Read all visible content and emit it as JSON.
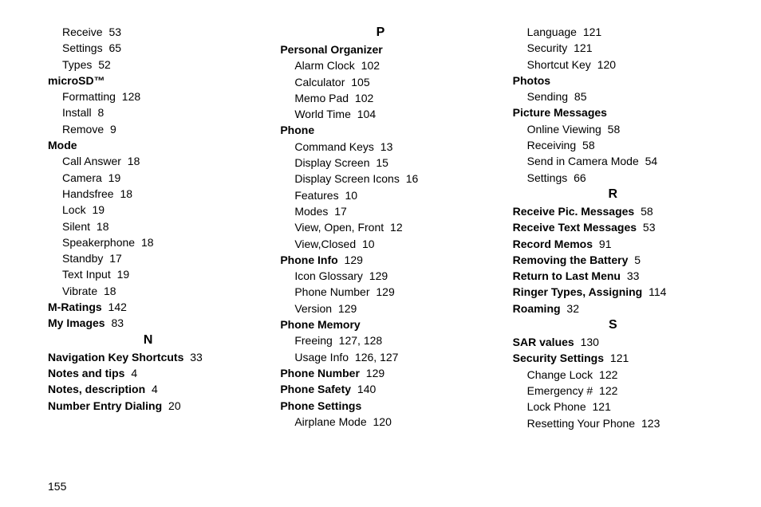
{
  "page_number": "155",
  "columns": [
    {
      "items": [
        {
          "type": "sub",
          "term": "Receive",
          "page": "53"
        },
        {
          "type": "sub",
          "term": "Settings",
          "page": "65"
        },
        {
          "type": "sub",
          "term": "Types",
          "page": "52"
        },
        {
          "type": "top",
          "term": "microSD™",
          "page": ""
        },
        {
          "type": "sub",
          "term": "Formatting",
          "page": "128"
        },
        {
          "type": "sub",
          "term": "Install",
          "page": "8"
        },
        {
          "type": "sub",
          "term": "Remove",
          "page": "9"
        },
        {
          "type": "top",
          "term": "Mode",
          "page": ""
        },
        {
          "type": "sub",
          "term": "Call Answer",
          "page": "18"
        },
        {
          "type": "sub",
          "term": "Camera",
          "page": "19"
        },
        {
          "type": "sub",
          "term": "Handsfree",
          "page": "18"
        },
        {
          "type": "sub",
          "term": "Lock",
          "page": "19"
        },
        {
          "type": "sub",
          "term": "Silent",
          "page": "18"
        },
        {
          "type": "sub",
          "term": "Speakerphone",
          "page": "18"
        },
        {
          "type": "sub",
          "term": "Standby",
          "page": "17"
        },
        {
          "type": "sub",
          "term": "Text Input",
          "page": "19"
        },
        {
          "type": "sub",
          "term": "Vibrate",
          "page": "18"
        },
        {
          "type": "top",
          "term": "M-Ratings",
          "page": "142"
        },
        {
          "type": "top",
          "term": "My Images",
          "page": "83"
        },
        {
          "type": "letter",
          "term": "N"
        },
        {
          "type": "top",
          "term": "Navigation Key Shortcuts",
          "page": "33"
        },
        {
          "type": "top",
          "term": "Notes and tips",
          "page": "4"
        },
        {
          "type": "top",
          "term": "Notes, description",
          "page": "4"
        },
        {
          "type": "top",
          "term": "Number Entry Dialing",
          "page": "20"
        }
      ]
    },
    {
      "items": [
        {
          "type": "letter",
          "term": "P"
        },
        {
          "type": "top",
          "term": "Personal Organizer",
          "page": ""
        },
        {
          "type": "sub",
          "term": "Alarm Clock",
          "page": "102"
        },
        {
          "type": "sub",
          "term": "Calculator",
          "page": "105"
        },
        {
          "type": "sub",
          "term": "Memo Pad",
          "page": "102"
        },
        {
          "type": "sub",
          "term": "World Time",
          "page": "104"
        },
        {
          "type": "top",
          "term": "Phone",
          "page": ""
        },
        {
          "type": "sub",
          "term": "Command Keys",
          "page": "13"
        },
        {
          "type": "sub",
          "term": "Display Screen",
          "page": "15"
        },
        {
          "type": "sub",
          "term": "Display Screen Icons",
          "page": "16"
        },
        {
          "type": "sub",
          "term": "Features",
          "page": "10"
        },
        {
          "type": "sub",
          "term": "Modes",
          "page": "17"
        },
        {
          "type": "sub",
          "term": "View, Open, Front",
          "page": "12"
        },
        {
          "type": "sub",
          "term": "View,Closed",
          "page": "10"
        },
        {
          "type": "top",
          "term": "Phone Info",
          "page": "129"
        },
        {
          "type": "sub",
          "term": "Icon Glossary",
          "page": "129"
        },
        {
          "type": "sub",
          "term": "Phone Number",
          "page": "129"
        },
        {
          "type": "sub",
          "term": "Version",
          "page": "129"
        },
        {
          "type": "top",
          "term": "Phone Memory",
          "page": ""
        },
        {
          "type": "sub",
          "term": "Freeing",
          "page": "127, 128"
        },
        {
          "type": "sub",
          "term": "Usage Info",
          "page": "126, 127"
        },
        {
          "type": "top",
          "term": "Phone Number",
          "page": "129"
        },
        {
          "type": "top",
          "term": "Phone Safety",
          "page": "140"
        },
        {
          "type": "top",
          "term": "Phone Settings",
          "page": ""
        },
        {
          "type": "sub",
          "term": "Airplane Mode",
          "page": "120"
        }
      ]
    },
    {
      "items": [
        {
          "type": "sub",
          "term": "Language",
          "page": "121"
        },
        {
          "type": "sub",
          "term": "Security",
          "page": "121"
        },
        {
          "type": "sub",
          "term": "Shortcut Key",
          "page": "120"
        },
        {
          "type": "top",
          "term": "Photos",
          "page": ""
        },
        {
          "type": "sub",
          "term": "Sending",
          "page": "85"
        },
        {
          "type": "top",
          "term": "Picture Messages",
          "page": ""
        },
        {
          "type": "sub",
          "term": "Online Viewing",
          "page": "58"
        },
        {
          "type": "sub",
          "term": "Receiving",
          "page": "58"
        },
        {
          "type": "sub",
          "term": "Send in Camera Mode",
          "page": "54"
        },
        {
          "type": "sub",
          "term": "Settings",
          "page": "66"
        },
        {
          "type": "letter",
          "term": "R"
        },
        {
          "type": "top",
          "term": "Receive Pic. Messages",
          "page": "58"
        },
        {
          "type": "top",
          "term": "Receive Text Messages",
          "page": "53"
        },
        {
          "type": "top",
          "term": "Record Memos",
          "page": "91"
        },
        {
          "type": "top",
          "term": "Removing the Battery",
          "page": "5"
        },
        {
          "type": "top",
          "term": "Return to Last Menu",
          "page": "33"
        },
        {
          "type": "top",
          "term": "Ringer Types, Assigning",
          "page": "114"
        },
        {
          "type": "top",
          "term": "Roaming",
          "page": "32"
        },
        {
          "type": "letter",
          "term": "S"
        },
        {
          "type": "top",
          "term": "SAR values",
          "page": "130"
        },
        {
          "type": "top",
          "term": "Security Settings",
          "page": "121"
        },
        {
          "type": "sub",
          "term": "Change Lock",
          "page": "122"
        },
        {
          "type": "sub",
          "term": "Emergency #",
          "page": "122"
        },
        {
          "type": "sub",
          "term": "Lock Phone",
          "page": "121"
        },
        {
          "type": "sub",
          "term": "Resetting Your Phone",
          "page": "123"
        }
      ]
    }
  ]
}
